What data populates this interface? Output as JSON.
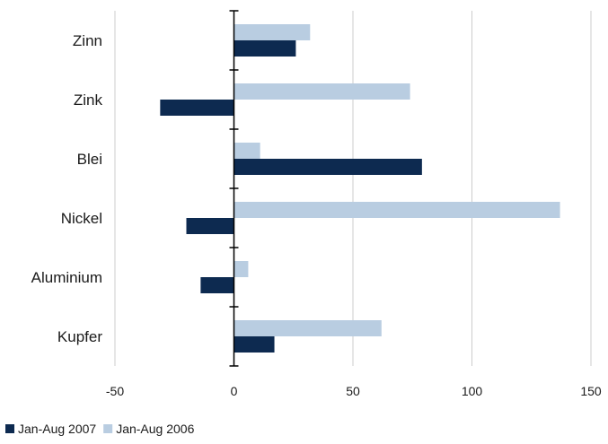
{
  "chart_data": {
    "type": "bar",
    "orientation": "horizontal",
    "categories": [
      "Zinn",
      "Zink",
      "Blei",
      "Nickel",
      "Aluminium",
      "Kupfer"
    ],
    "series": [
      {
        "name": "Jan-Aug 2007",
        "color": "#0d2a50",
        "values": [
          26,
          -31,
          79,
          -20,
          -14,
          17
        ]
      },
      {
        "name": "Jan-Aug 2006",
        "color": "#b9cde1",
        "values": [
          32,
          74,
          11,
          137,
          6,
          62
        ]
      }
    ],
    "xlim": [
      -50,
      150
    ],
    "xticks": [
      "-50",
      "0",
      "50",
      "100",
      "150"
    ],
    "title": "",
    "xlabel": "",
    "ylabel": "",
    "grid": "vertical",
    "legend": "bottom-left"
  }
}
